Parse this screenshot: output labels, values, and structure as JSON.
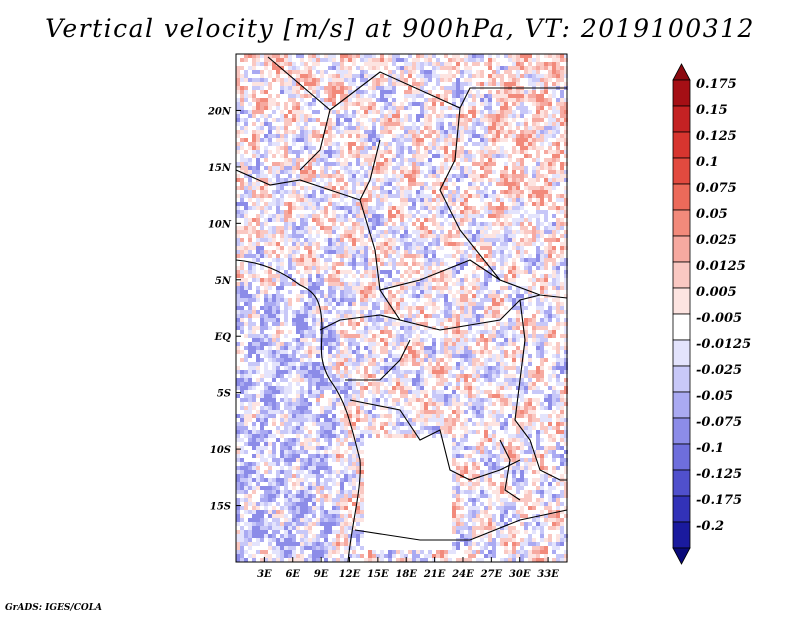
{
  "title": "Vertical velocity [m/s] at 900hPa, VT: 2019100312",
  "footer": "GrADS: IGES/COLA",
  "map": {
    "lon_range": [
      0,
      35
    ],
    "lat_range": [
      -20,
      25
    ],
    "x_ticks": [
      {
        "value": 3,
        "label": "3E"
      },
      {
        "value": 6,
        "label": "6E"
      },
      {
        "value": 9,
        "label": "9E"
      },
      {
        "value": 12,
        "label": "12E"
      },
      {
        "value": 15,
        "label": "15E"
      },
      {
        "value": 18,
        "label": "18E"
      },
      {
        "value": 21,
        "label": "21E"
      },
      {
        "value": 24,
        "label": "24E"
      },
      {
        "value": 27,
        "label": "27E"
      },
      {
        "value": 30,
        "label": "30E"
      },
      {
        "value": 33,
        "label": "33E"
      }
    ],
    "y_ticks": [
      {
        "value": 20,
        "label": "20N"
      },
      {
        "value": 15,
        "label": "15N"
      },
      {
        "value": 10,
        "label": "10N"
      },
      {
        "value": 5,
        "label": "5N"
      },
      {
        "value": 0,
        "label": "EQ"
      },
      {
        "value": -5,
        "label": "5S"
      },
      {
        "value": -10,
        "label": "10S"
      },
      {
        "value": -15,
        "label": "15S"
      }
    ],
    "field": "vertical velocity (m/s)"
  },
  "colorbar": {
    "levels": [
      {
        "label": "0.175",
        "color": "#a50f15"
      },
      {
        "label": "0.15",
        "color": "#c42223"
      },
      {
        "label": "0.125",
        "color": "#d7352f"
      },
      {
        "label": "0.1",
        "color": "#e24a3f"
      },
      {
        "label": "0.075",
        "color": "#ec6a5a"
      },
      {
        "label": "0.05",
        "color": "#f28a7b"
      },
      {
        "label": "0.025",
        "color": "#f6a9a0"
      },
      {
        "label": "0.0125",
        "color": "#fac8c2"
      },
      {
        "label": "0.005",
        "color": "#fde4e1"
      },
      {
        "label": "-0.005",
        "color": "#ffffff"
      },
      {
        "label": "-0.0125",
        "color": "#e3e3fc"
      },
      {
        "label": "-0.025",
        "color": "#c8c8f8"
      },
      {
        "label": "-0.05",
        "color": "#aaaaf2"
      },
      {
        "label": "-0.075",
        "color": "#8c8ce8"
      },
      {
        "label": "-0.1",
        "color": "#6e6edc"
      },
      {
        "label": "-0.125",
        "color": "#5050cc"
      },
      {
        "label": "-0.175",
        "color": "#3232b8"
      },
      {
        "label": "-0.2",
        "color": "#1a1a9e"
      }
    ],
    "over_color": "#8b0a10",
    "under_color": "#0a0a7a"
  }
}
